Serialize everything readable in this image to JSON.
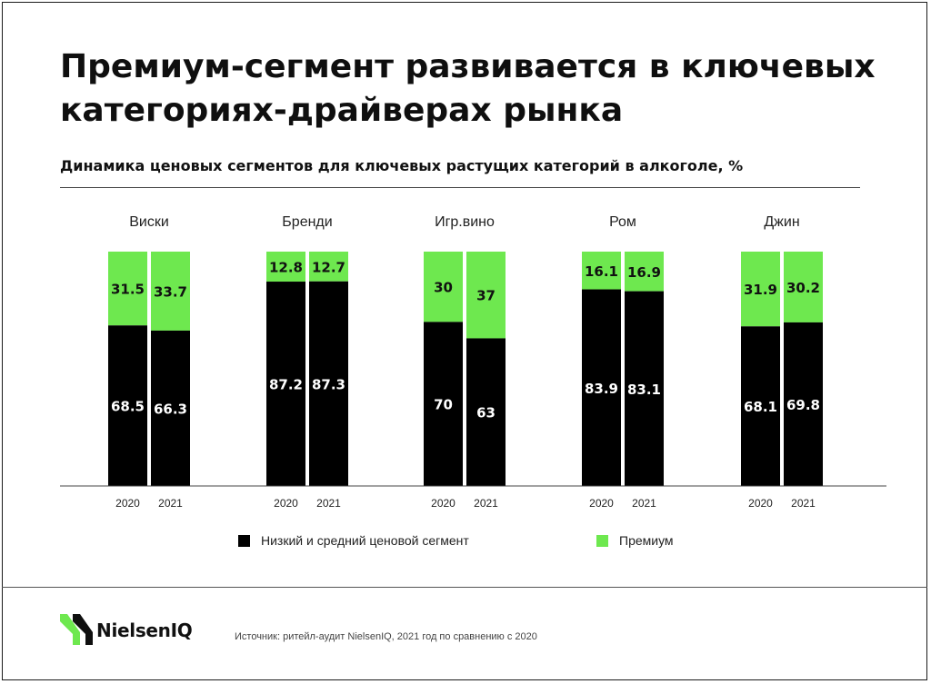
{
  "title": "Премиум-сегмент развивается в ключевых категориях-драйверах рынка",
  "subtitle": "Динамика ценовых сегментов для ключевых растущих категорий в алкоголе, %",
  "colors": {
    "low_mid": "#000000",
    "premium": "#6ee84f"
  },
  "legend": {
    "low_mid": "Низкий и средний ценовой сегмент",
    "premium": "Премиум"
  },
  "chart_data": {
    "type": "bar",
    "stacked": true,
    "ylim": [
      0,
      100
    ],
    "groups": [
      {
        "category": "Виски",
        "bars": [
          {
            "year": "2020",
            "low_mid": 68.5,
            "premium": 31.5
          },
          {
            "year": "2021",
            "low_mid": 66.3,
            "premium": 33.7
          }
        ]
      },
      {
        "category": "Бренди",
        "bars": [
          {
            "year": "2020",
            "low_mid": 87.2,
            "premium": 12.8
          },
          {
            "year": "2021",
            "low_mid": 87.3,
            "premium": 12.7
          }
        ]
      },
      {
        "category": "Игр.вино",
        "bars": [
          {
            "year": "2020",
            "low_mid": 70,
            "premium": 30
          },
          {
            "year": "2021",
            "low_mid": 63,
            "premium": 37
          }
        ]
      },
      {
        "category": "Ром",
        "bars": [
          {
            "year": "2020",
            "low_mid": 83.9,
            "premium": 16.1
          },
          {
            "year": "2021",
            "low_mid": 83.1,
            "premium": 16.9
          }
        ]
      },
      {
        "category": "Джин",
        "bars": [
          {
            "year": "2020",
            "low_mid": 68.1,
            "premium": 31.9
          },
          {
            "year": "2021",
            "low_mid": 69.8,
            "premium": 30.2
          }
        ]
      }
    ],
    "series": [
      {
        "key": "low_mid",
        "name": "Низкий и средний ценовой сегмент"
      },
      {
        "key": "premium",
        "name": "Премиум"
      }
    ],
    "legend_position": "bottom"
  },
  "footer": {
    "logo_text": "NielsenIQ",
    "source": "Источник: ритейл-аудит NielsenIQ, 2021 год по сравнению с 2020"
  }
}
